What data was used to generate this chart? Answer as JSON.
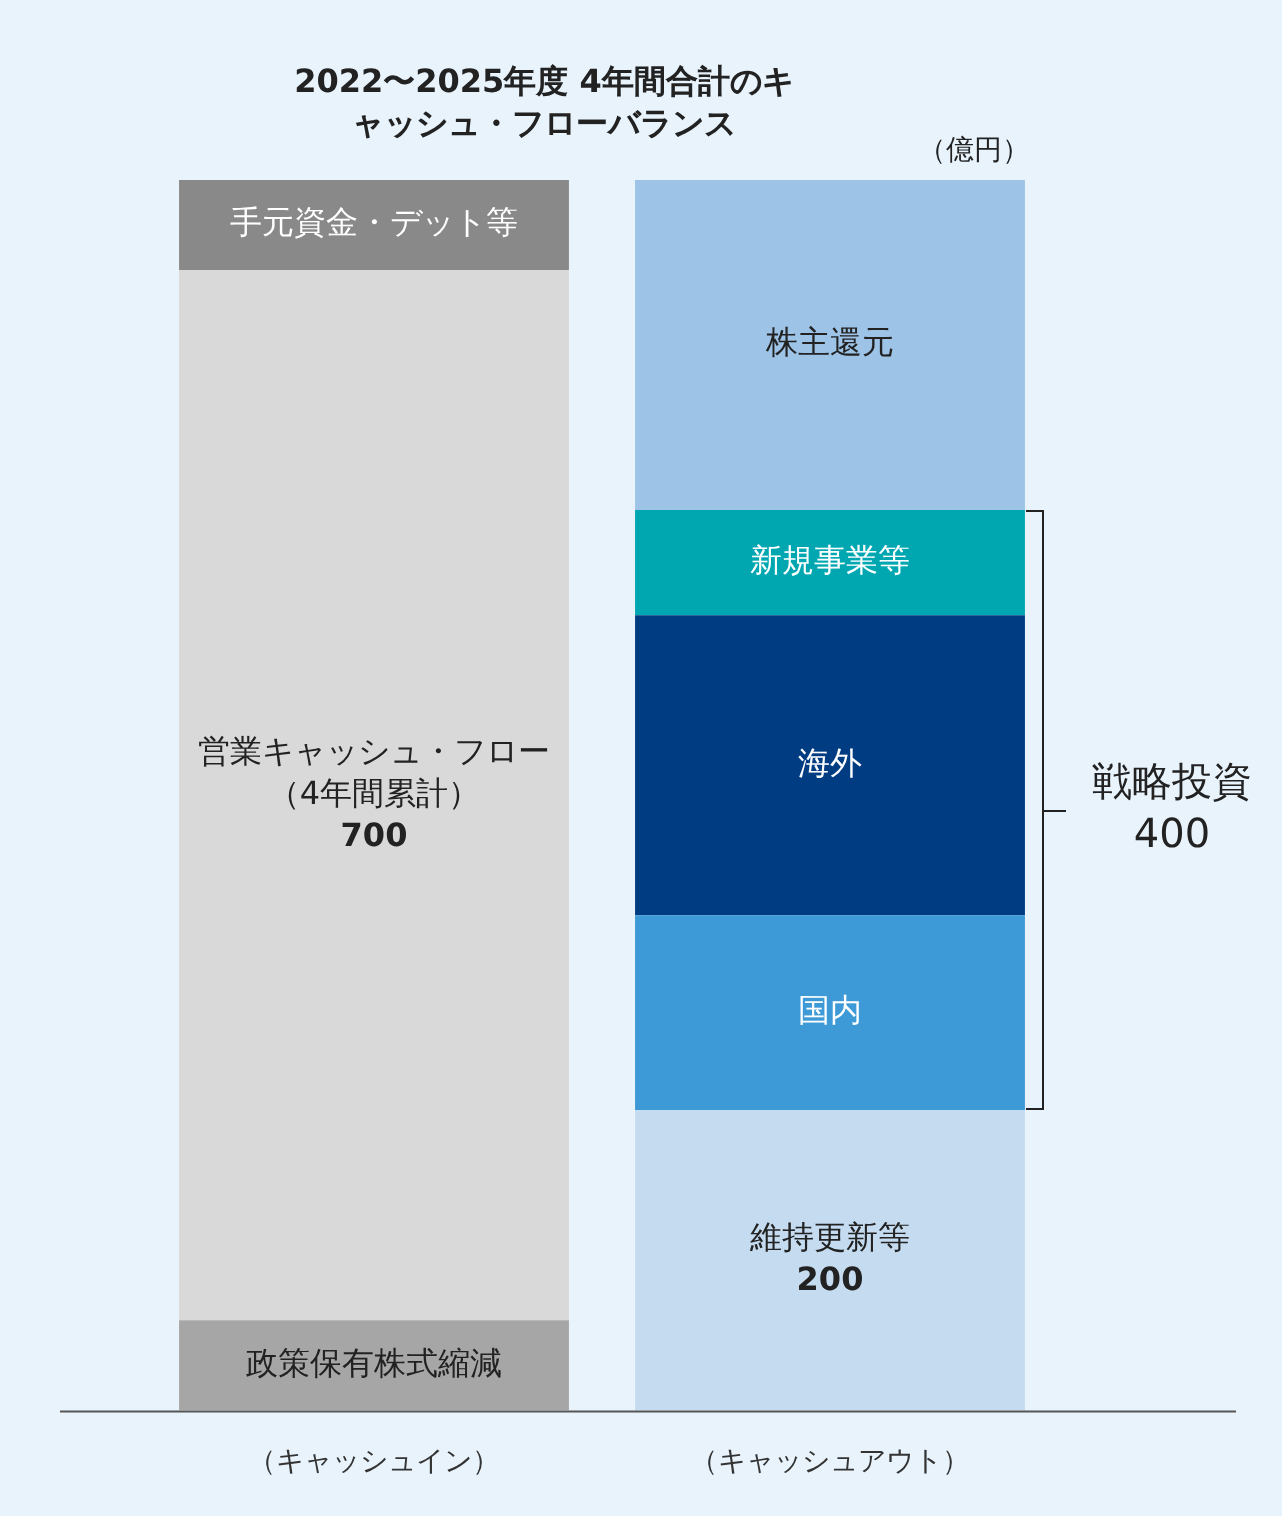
{
  "chart_data": {
    "type": "bar",
    "stacked": true,
    "title": "2022〜2025年度 4年間合計のキャッシュ・フローバランス",
    "categories": [
      "（キャッシュイン）",
      "（キャッシュアウト）"
    ],
    "series": [
      {
        "name": "政策保有株式縮減",
        "color": "#a6a6a6",
        "values": [
          60,
          null
        ]
      },
      {
        "name": "営業キャッシュ・フロー（4年間累計）",
        "color": "#d9d9d9",
        "values": [
          700,
          null
        ],
        "value_labels": [
          "700",
          null
        ]
      },
      {
        "name": "手元資金・デット等",
        "color": "#898989",
        "values": [
          60,
          null
        ]
      },
      {
        "name": "維持更新等",
        "color": "#c5dcf0",
        "values": [
          null,
          200
        ],
        "value_labels": [
          null,
          "200"
        ]
      },
      {
        "name": "国内",
        "color": "#3d9ad6",
        "values": [
          null,
          130
        ]
      },
      {
        "name": "海外",
        "color": "#003c82",
        "values": [
          null,
          200
        ]
      },
      {
        "name": "新規事業等",
        "color": "#00a7b1",
        "values": [
          null,
          70
        ]
      },
      {
        "name": "株主還元",
        "color": "#9dc3e6",
        "values": [
          null,
          220
        ]
      }
    ],
    "annotations": [
      "（億円）",
      "戦略投資",
      "400"
    ],
    "legend": false,
    "grid": false
  }
}
